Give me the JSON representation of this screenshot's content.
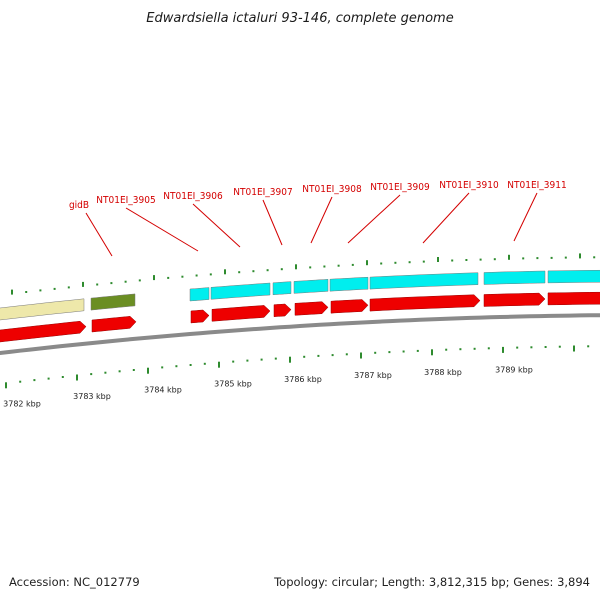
{
  "title": "Edwardsiella ictaluri 93-146, complete genome",
  "footer": {
    "accession": "Accession: NC_012779",
    "summary": "Topology: circular; Length: 3,812,315 bp; Genes: 3,894"
  },
  "colors": {
    "background": "#ffffff",
    "backbone": "#8a8a8a",
    "forward_cds": "#ee0000",
    "rna_or_gene_cyan": "#00eeee",
    "gene_olive": "#6b8e23",
    "gene_khaki": "#eee8aa",
    "tick": "#2e8b2e",
    "label": "#d40000"
  },
  "axis": {
    "unit": "kbp",
    "tick_labels": [
      "3782 kbp",
      "3783 kbp",
      "3784 kbp",
      "3785 kbp",
      "3786 kbp",
      "3787 kbp",
      "3788 kbp",
      "3789 kbp"
    ]
  },
  "gene_labels": [
    "gidB",
    "NT01EI_3905",
    "NT01EI_3906",
    "NT01EI_3907",
    "NT01EI_3908",
    "NT01EI_3909",
    "NT01EI_3910",
    "NT01EI_3911"
  ]
}
